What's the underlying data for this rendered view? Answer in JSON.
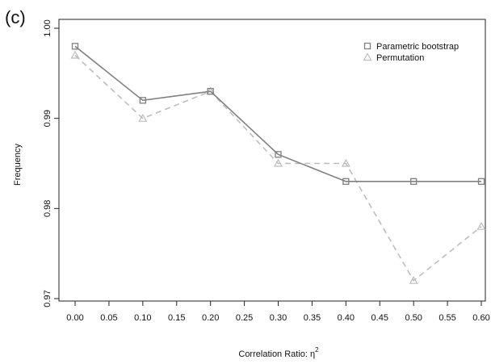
{
  "panel_label": "(c)",
  "chart_data": {
    "type": "line",
    "xlabel": "Correlation Ratio: η",
    "xlabel_superscript": "2",
    "ylabel": "Frequency",
    "x_ticks": [
      "0.00",
      "0.05",
      "0.10",
      "0.15",
      "0.20",
      "0.25",
      "0.30",
      "0.35",
      "0.40",
      "0.45",
      "0.50",
      "0.55",
      "0.60"
    ],
    "y_ticks": [
      "0.97",
      "0.98",
      "0.99",
      "1.00"
    ],
    "xlim": [
      0.0,
      0.6
    ],
    "ylim": [
      0.97,
      1.0
    ],
    "grid": false,
    "legend_position": "top-right",
    "x": [
      0.0,
      0.1,
      0.2,
      0.3,
      0.4,
      0.5,
      0.6
    ],
    "series": [
      {
        "name": "Parametric bootstrap",
        "marker": "square",
        "line": "solid",
        "color": "#808080",
        "values": [
          0.998,
          0.992,
          0.993,
          0.986,
          0.983,
          0.983,
          0.983
        ]
      },
      {
        "name": "Permutation",
        "marker": "triangle",
        "line": "dashed",
        "color": "#bdbdbd",
        "values": [
          0.997,
          0.99,
          0.993,
          0.985,
          0.985,
          0.972,
          0.978
        ]
      }
    ]
  }
}
